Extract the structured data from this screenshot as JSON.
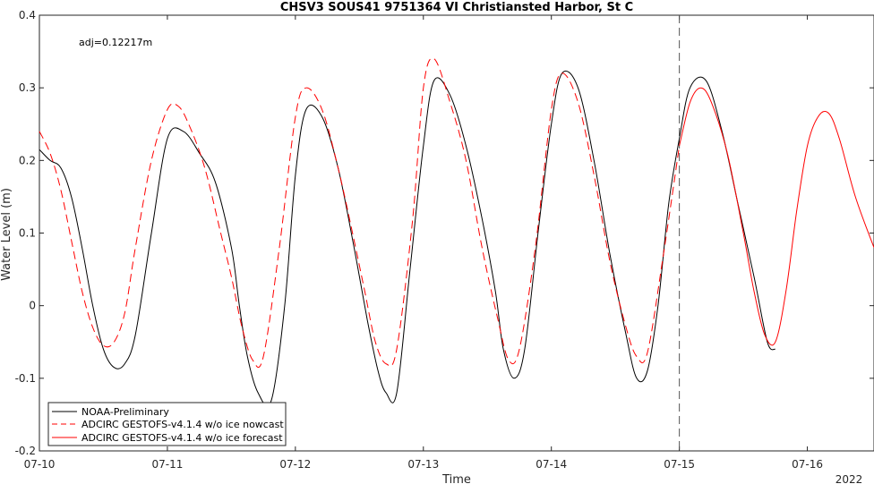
{
  "chart_data": {
    "type": "line",
    "title": "CHSV3 SOUS41 9751364 VI Christiansted Harbor, St C",
    "xlabel": "Time",
    "ylabel": "Water Level (m)",
    "annotation": "adj=0.12217m",
    "year_label": "2022",
    "xlim": [
      "07-10 00:00",
      "07-16 12:30"
    ],
    "ylim": [
      -0.2,
      0.4
    ],
    "x_ticks": [
      "07-10",
      "07-11",
      "07-12",
      "07-13",
      "07-14",
      "07-15",
      "07-16"
    ],
    "y_ticks": [
      "-0.2",
      "-0.1",
      "0",
      "0.1",
      "0.2",
      "0.3",
      "0.4"
    ],
    "nowcast_forecast_boundary": "07-15 00:00",
    "legend_position": "bottom-left",
    "series": [
      {
        "name": "NOAA-Preliminary",
        "color": "#000000",
        "dash": "solid",
        "x": [
          "07-10 00:00",
          "07-10 02:00",
          "07-10 04:00",
          "07-10 06:00",
          "07-10 08:00",
          "07-10 10:00",
          "07-10 12:00",
          "07-10 14:00",
          "07-10 16:00",
          "07-10 18:00",
          "07-10 21:00",
          "07-11 00:00",
          "07-11 03:00",
          "07-11 06:00",
          "07-11 09:00",
          "07-11 12:00",
          "07-11 13:30",
          "07-11 15:00",
          "07-11 17:00",
          "07-11 19:30",
          "07-11 22:00",
          "07-12 00:00",
          "07-12 02:00",
          "07-12 05:00",
          "07-12 08:00",
          "07-12 11:00",
          "07-12 13:30",
          "07-12 15:30",
          "07-12 17:00",
          "07-12 19:00",
          "07-12 21:30",
          "07-13 00:00",
          "07-13 02:00",
          "07-13 05:00",
          "07-13 08:00",
          "07-13 11:00",
          "07-13 13:30",
          "07-13 15:00",
          "07-13 17:00",
          "07-13 19:00",
          "07-13 21:30",
          "07-14 00:00",
          "07-14 02:00",
          "07-14 05:00",
          "07-14 08:00",
          "07-14 11:00",
          "07-14 14:00",
          "07-14 16:00",
          "07-14 18:00",
          "07-14 20:00",
          "07-14 22:00",
          "07-15 00:00",
          "07-15 02:00",
          "07-15 05:00",
          "07-15 08:00",
          "07-15 11:00",
          "07-15 14:00",
          "07-15 16:30",
          "07-15 18:00"
        ],
        "y": [
          0.215,
          0.2,
          0.19,
          0.15,
          0.08,
          0.0,
          -0.06,
          -0.085,
          -0.08,
          -0.04,
          0.1,
          0.23,
          0.24,
          0.21,
          0.17,
          0.08,
          0.0,
          -0.07,
          -0.12,
          -0.13,
          0.0,
          0.18,
          0.27,
          0.26,
          0.19,
          0.08,
          -0.02,
          -0.09,
          -0.12,
          -0.12,
          0.05,
          0.22,
          0.31,
          0.29,
          0.22,
          0.12,
          0.02,
          -0.06,
          -0.1,
          -0.06,
          0.1,
          0.25,
          0.32,
          0.3,
          0.2,
          0.07,
          -0.04,
          -0.1,
          -0.09,
          0.0,
          0.14,
          0.23,
          0.3,
          0.31,
          0.24,
          0.14,
          0.04,
          -0.05,
          -0.06
        ]
      },
      {
        "name": "ADCIRC GESTOFS-v4.1.4 w/o ice nowcast",
        "color": "#ff0000",
        "dash": "dashed",
        "x": [
          "07-10 00:00",
          "07-10 02:00",
          "07-10 04:00",
          "07-10 06:00",
          "07-10 08:00",
          "07-10 10:00",
          "07-10 12:00",
          "07-10 14:00",
          "07-10 16:00",
          "07-10 18:00",
          "07-10 21:00",
          "07-11 00:00",
          "07-11 02:00",
          "07-11 04:00",
          "07-11 07:00",
          "07-11 10:00",
          "07-11 12:00",
          "07-11 14:00",
          "07-11 16:00",
          "07-11 18:00",
          "07-11 21:00",
          "07-12 00:00",
          "07-12 02:00",
          "07-12 05:00",
          "07-12 08:00",
          "07-12 11:00",
          "07-12 13:00",
          "07-12 15:00",
          "07-12 17:00",
          "07-12 19:00",
          "07-12 22:00",
          "07-13 00:00",
          "07-13 02:00",
          "07-13 05:00",
          "07-13 08:00",
          "07-13 11:00",
          "07-13 14:00",
          "07-13 16:00",
          "07-13 18:00",
          "07-13 21:00",
          "07-14 00:00",
          "07-14 02:00",
          "07-14 05:00",
          "07-14 08:00",
          "07-14 11:00",
          "07-14 14:00",
          "07-14 16:00",
          "07-14 18:00",
          "07-14 21:00",
          "07-15 00:00"
        ],
        "y": [
          0.24,
          0.21,
          0.16,
          0.09,
          0.02,
          -0.03,
          -0.055,
          -0.05,
          -0.01,
          0.08,
          0.2,
          0.27,
          0.275,
          0.25,
          0.19,
          0.1,
          0.04,
          -0.03,
          -0.075,
          -0.07,
          0.08,
          0.26,
          0.3,
          0.27,
          0.19,
          0.09,
          0.02,
          -0.05,
          -0.08,
          -0.06,
          0.12,
          0.3,
          0.34,
          0.28,
          0.2,
          0.08,
          -0.02,
          -0.075,
          -0.06,
          0.08,
          0.27,
          0.32,
          0.28,
          0.18,
          0.06,
          -0.03,
          -0.07,
          -0.065,
          0.07,
          0.22
        ]
      },
      {
        "name": "ADCIRC GESTOFS-v4.1.4 w/o ice forecast",
        "color": "#ff0000",
        "dash": "solid",
        "x": [
          "07-15 00:00",
          "07-15 02:00",
          "07-15 04:00",
          "07-15 06:00",
          "07-15 09:00",
          "07-15 12:00",
          "07-15 14:00",
          "07-15 16:00",
          "07-15 18:00",
          "07-15 20:00",
          "07-15 22:00",
          "07-16 00:00",
          "07-16 02:00",
          "07-16 04:00",
          "07-16 06:00",
          "07-16 09:00",
          "07-16 12:30"
        ],
        "y": [
          0.22,
          0.28,
          0.3,
          0.28,
          0.21,
          0.1,
          0.02,
          -0.04,
          -0.05,
          0.02,
          0.13,
          0.22,
          0.26,
          0.265,
          0.23,
          0.15,
          0.08
        ]
      }
    ]
  }
}
